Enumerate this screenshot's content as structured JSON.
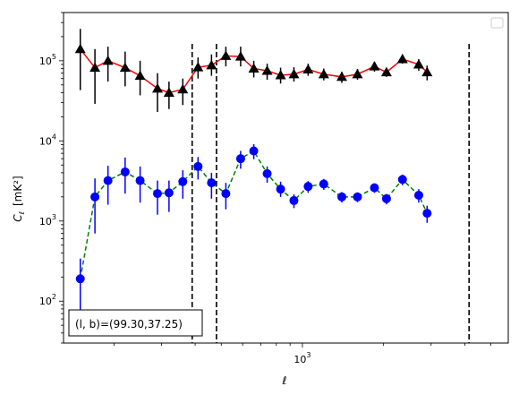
{
  "chart_data": {
    "type": "scatter",
    "title": "",
    "xlabel": "ℓ",
    "ylabel_main": "C",
    "ylabel_sub": "ℓ",
    "ylabel_unit": "[mK²]",
    "xscale": "log",
    "yscale": "log",
    "xlim": [
      130,
      5800
    ],
    "ylim": [
      30,
      400000
    ],
    "x_major_ticks": [
      {
        "value": 1000,
        "base": "10",
        "exp": "3"
      }
    ],
    "y_major_ticks": [
      {
        "value": 100,
        "base": "10",
        "exp": "2"
      },
      {
        "value": 1000,
        "base": "10",
        "exp": "3"
      },
      {
        "value": 10000,
        "base": "10",
        "exp": "4"
      },
      {
        "value": 100000,
        "base": "10",
        "exp": "5"
      }
    ],
    "grid": false,
    "legend": "top-right (empty)",
    "annotation": "(l, b)=(99.30,37.25)",
    "vertical_lines": [
      390,
      480,
      4150
    ],
    "series": [
      {
        "marker": "triangle",
        "color": "#000000",
        "line_color": "#ff0000",
        "line_style": "solid",
        "points": [
          {
            "x": 150,
            "y": 140000,
            "lo": 43000,
            "hi": 250000
          },
          {
            "x": 170,
            "y": 82000,
            "lo": 29000,
            "hi": 140000
          },
          {
            "x": 190,
            "y": 100000,
            "lo": 55000,
            "hi": 150000
          },
          {
            "x": 220,
            "y": 82000,
            "lo": 48000,
            "hi": 130000
          },
          {
            "x": 250,
            "y": 65000,
            "lo": 37000,
            "hi": 100000
          },
          {
            "x": 290,
            "y": 45000,
            "lo": 23000,
            "hi": 70000
          },
          {
            "x": 320,
            "y": 40000,
            "lo": 25000,
            "hi": 55000
          },
          {
            "x": 360,
            "y": 44000,
            "lo": 28000,
            "hi": 60000
          },
          {
            "x": 410,
            "y": 83000,
            "lo": 60000,
            "hi": 110000
          },
          {
            "x": 460,
            "y": 88000,
            "lo": 65000,
            "hi": 120000
          },
          {
            "x": 520,
            "y": 115000,
            "lo": 85000,
            "hi": 150000
          },
          {
            "x": 590,
            "y": 113000,
            "lo": 85000,
            "hi": 150000
          },
          {
            "x": 660,
            "y": 80000,
            "lo": 62000,
            "hi": 100000
          },
          {
            "x": 740,
            "y": 75000,
            "lo": 58000,
            "hi": 92000
          },
          {
            "x": 830,
            "y": 66000,
            "lo": 52000,
            "hi": 82000
          },
          {
            "x": 930,
            "y": 68000,
            "lo": 55000,
            "hi": 83000
          },
          {
            "x": 1050,
            "y": 78000,
            "lo": 65000,
            "hi": 92000
          },
          {
            "x": 1200,
            "y": 68000,
            "lo": 57000,
            "hi": 80000
          },
          {
            "x": 1400,
            "y": 63000,
            "lo": 53000,
            "hi": 73000
          },
          {
            "x": 1600,
            "y": 68000,
            "lo": 58000,
            "hi": 79000
          },
          {
            "x": 1850,
            "y": 85000,
            "lo": 73000,
            "hi": 97000
          },
          {
            "x": 2050,
            "y": 72000,
            "lo": 63000,
            "hi": 82000
          },
          {
            "x": 2350,
            "y": 105000,
            "lo": 92000,
            "hi": 120000
          },
          {
            "x": 2700,
            "y": 90000,
            "lo": 75000,
            "hi": 105000
          },
          {
            "x": 2900,
            "y": 72000,
            "lo": 57000,
            "hi": 87000
          }
        ]
      },
      {
        "marker": "circle",
        "color": "#0000ff",
        "line_color": "#008000",
        "line_style": "dashed",
        "points": [
          {
            "x": 150,
            "y": 190,
            "lo": 70,
            "hi": 340
          },
          {
            "x": 170,
            "y": 2000,
            "lo": 700,
            "hi": 3400
          },
          {
            "x": 190,
            "y": 3200,
            "lo": 1600,
            "hi": 4900
          },
          {
            "x": 220,
            "y": 4100,
            "lo": 2200,
            "hi": 6200
          },
          {
            "x": 250,
            "y": 3200,
            "lo": 1700,
            "hi": 4800
          },
          {
            "x": 290,
            "y": 2200,
            "lo": 1200,
            "hi": 3200
          },
          {
            "x": 320,
            "y": 2250,
            "lo": 1300,
            "hi": 3200
          },
          {
            "x": 360,
            "y": 3100,
            "lo": 1900,
            "hi": 4300
          },
          {
            "x": 410,
            "y": 4800,
            "lo": 3300,
            "hi": 6300
          },
          {
            "x": 460,
            "y": 3000,
            "lo": 1900,
            "hi": 4000
          },
          {
            "x": 520,
            "y": 2200,
            "lo": 1400,
            "hi": 3000
          },
          {
            "x": 590,
            "y": 6000,
            "lo": 4500,
            "hi": 7500
          },
          {
            "x": 660,
            "y": 7500,
            "lo": 5900,
            "hi": 9100
          },
          {
            "x": 740,
            "y": 3900,
            "lo": 3000,
            "hi": 4800
          },
          {
            "x": 830,
            "y": 2500,
            "lo": 2000,
            "hi": 3100
          },
          {
            "x": 930,
            "y": 1800,
            "lo": 1450,
            "hi": 2150
          },
          {
            "x": 1050,
            "y": 2700,
            "lo": 2250,
            "hi": 3150
          },
          {
            "x": 1200,
            "y": 2900,
            "lo": 2450,
            "hi": 3350
          },
          {
            "x": 1400,
            "y": 2000,
            "lo": 1700,
            "hi": 2300
          },
          {
            "x": 1600,
            "y": 2000,
            "lo": 1720,
            "hi": 2280
          },
          {
            "x": 1850,
            "y": 2600,
            "lo": 2250,
            "hi": 2950
          },
          {
            "x": 2050,
            "y": 1900,
            "lo": 1620,
            "hi": 2180
          },
          {
            "x": 2350,
            "y": 3300,
            "lo": 2800,
            "hi": 3800
          },
          {
            "x": 2700,
            "y": 2100,
            "lo": 1700,
            "hi": 2500
          },
          {
            "x": 2900,
            "y": 1250,
            "lo": 950,
            "hi": 1550
          }
        ]
      }
    ]
  }
}
